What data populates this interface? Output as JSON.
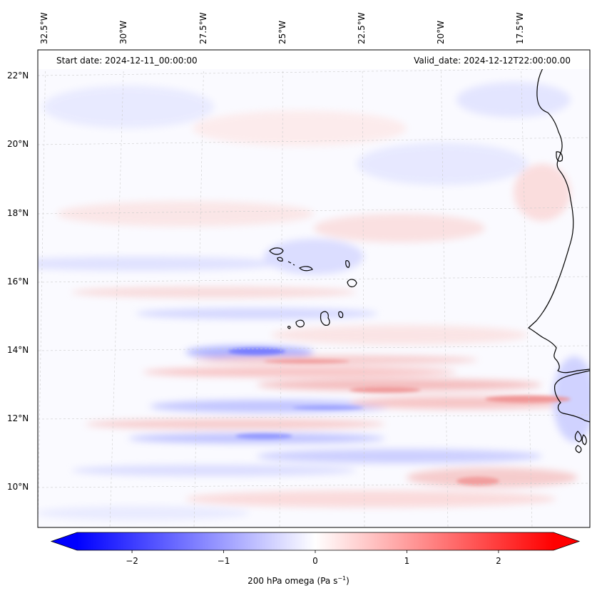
{
  "header": {
    "start_date": "Start date: 2024-12-11_00:00:00",
    "valid_date": "Valid_date: 2024-12-12T22:00:00.00"
  },
  "longitude_labels": [
    "32.5°W",
    "30°W",
    "27.5°W",
    "25°W",
    "22.5°W",
    "20°W",
    "17.5°W"
  ],
  "latitude_labels": [
    "22°N",
    "20°N",
    "18°N",
    "16°N",
    "14°N",
    "12°N",
    "10°N"
  ],
  "colorbar": {
    "label": "200 hPa omega (Pa s",
    "label_sup": "−1",
    "label_end": ")",
    "ticks": [
      "−2",
      "−1",
      "0",
      "1",
      "2"
    ],
    "tick_values": [
      -2,
      -1,
      0,
      1,
      2
    ],
    "range": [
      -2.6,
      2.6
    ],
    "colors": {
      "negative": "#0000ff",
      "zero": "#ffffff",
      "positive": "#ff0000"
    }
  },
  "map": {
    "field": "200 hPa omega",
    "units": "Pa s-1",
    "extent_lon": [
      -33,
      -16.3
    ],
    "extent_lat": [
      8.8,
      22.7
    ],
    "coastline_color": "#000000",
    "gridline_style": "dashed light gray"
  }
}
